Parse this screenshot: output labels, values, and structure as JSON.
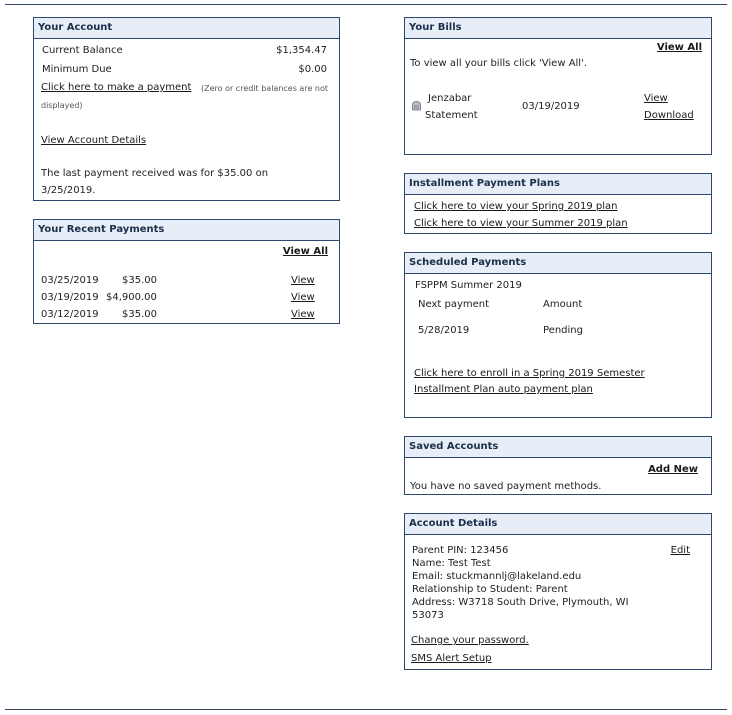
{
  "your_account": {
    "title": "Your Account",
    "balance_label": "Current Balance",
    "balance_value": "$1,354.47",
    "min_due_label": "Minimum Due",
    "min_due_value": "$0.00",
    "pay_link": "Click here to make a payment",
    "pay_note_1": "(Zero or credit balances are not",
    "pay_note_2": "displayed)",
    "details_link": "View Account Details",
    "last_payment_1": "The last payment received was for $35.00 on",
    "last_payment_2": "3/25/2019."
  },
  "recent_payments": {
    "title": "Your Recent Payments",
    "view_all": "View All",
    "rows": [
      {
        "date": "03/25/2019",
        "amount": "$35.00",
        "link": "View"
      },
      {
        "date": "03/19/2019",
        "amount": "$4,900.00",
        "link": "View"
      },
      {
        "date": "03/12/2019",
        "amount": "$35.00",
        "link": "View"
      }
    ]
  },
  "your_bills": {
    "title": "Your Bills",
    "view_all": "View All",
    "intro": "To view all your bills click 'View All'.",
    "bill_name_1": "Jenzabar",
    "bill_name_2": "Statement",
    "bill_date": "03/19/2019",
    "view_link": "View",
    "download_link": "Download"
  },
  "installment_plans": {
    "title": "Installment Payment Plans",
    "links": [
      "Click here to view your Spring 2019 plan",
      "Click here to view your Summer 2019 plan"
    ]
  },
  "scheduled_payments": {
    "title": "Scheduled Payments",
    "plan_name": "FSPPM Summer 2019",
    "col_next": "Next payment",
    "col_amount": "Amount",
    "date": "5/28/2019",
    "status": "Pending",
    "enroll_link_1": "Click here to enroll in a Spring 2019 Semester",
    "enroll_link_2": "Installment Plan auto payment plan"
  },
  "saved_accounts": {
    "title": "Saved Accounts",
    "add_new": "Add New",
    "empty_text": "You have no saved payment methods."
  },
  "account_details": {
    "title": "Account Details",
    "edit": "Edit",
    "pin": "Parent PIN: 123456",
    "name": "Name: Test Test",
    "email": "Email: stuckmannlj@lakeland.edu",
    "relationship": "Relationship to Student: Parent",
    "address_1": "Address: W3718 South Drive, Plymouth, WI",
    "address_2": "53073",
    "change_password": "Change your password.",
    "sms_setup": "SMS Alert Setup"
  },
  "icons": {
    "bill_icon": "document-icon"
  },
  "colors": {
    "border": "#2d4a6e",
    "header_bg": "#e8eef8",
    "header_text": "#1c2f4a"
  }
}
